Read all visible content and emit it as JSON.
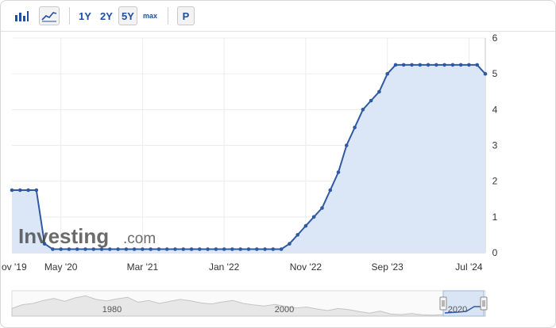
{
  "toolbar": {
    "bar_chart_icon": "bar-chart-icon",
    "area_chart_icon": "area-chart-icon",
    "range_1y": "1Y",
    "range_2y": "2Y",
    "range_5y": "5Y",
    "range_max": "max",
    "button_p": "P",
    "accent": "#1f4f9f"
  },
  "watermark": {
    "word": "Investing",
    "suffix": ".com"
  },
  "navigator": {
    "labels": [
      "1980",
      "2000",
      "2020"
    ]
  },
  "colors": {
    "line": "#2f5aa0",
    "area": "#dbe7f7",
    "marker": "#2f5aa0"
  },
  "chart_data": {
    "type": "area",
    "title": "",
    "xlabel": "",
    "ylabel": "",
    "ylim": [
      0,
      6
    ],
    "yticks": [
      0,
      1,
      2,
      3,
      4,
      5,
      6
    ],
    "grid": true,
    "legend": "none",
    "xtick_labels": [
      "ov '19",
      "May '20",
      "Mar '21",
      "Jan '22",
      "Nov '22",
      "Sep '23",
      "Jul '24"
    ],
    "dates": [
      "2019-11",
      "2019-12",
      "2020-01",
      "2020-02",
      "2020-03",
      "2020-04",
      "2020-05",
      "2020-06",
      "2020-07",
      "2020-08",
      "2020-09",
      "2020-10",
      "2020-11",
      "2020-12",
      "2021-01",
      "2021-02",
      "2021-03",
      "2021-04",
      "2021-05",
      "2021-06",
      "2021-07",
      "2021-08",
      "2021-09",
      "2021-10",
      "2021-11",
      "2021-12",
      "2022-01",
      "2022-02",
      "2022-03",
      "2022-04",
      "2022-05",
      "2022-06",
      "2022-07",
      "2022-08",
      "2022-09",
      "2022-10",
      "2022-11",
      "2022-12",
      "2023-01",
      "2023-02",
      "2023-03",
      "2023-04",
      "2023-05",
      "2023-06",
      "2023-07",
      "2023-08",
      "2023-09",
      "2023-10",
      "2023-11",
      "2023-12",
      "2024-01",
      "2024-02",
      "2024-03",
      "2024-04",
      "2024-05",
      "2024-06",
      "2024-07",
      "2024-08",
      "2024-09"
    ],
    "series": [
      {
        "values": [
          1.75,
          1.75,
          1.75,
          1.75,
          0.25,
          0.1,
          0.1,
          0.1,
          0.1,
          0.1,
          0.1,
          0.1,
          0.1,
          0.1,
          0.1,
          0.1,
          0.1,
          0.1,
          0.1,
          0.1,
          0.1,
          0.1,
          0.1,
          0.1,
          0.1,
          0.1,
          0.1,
          0.1,
          0.1,
          0.1,
          0.1,
          0.1,
          0.1,
          0.1,
          0.25,
          0.5,
          0.75,
          1.0,
          1.25,
          1.75,
          2.25,
          3.0,
          3.5,
          4.0,
          4.25,
          4.5,
          5.0,
          5.25,
          5.25,
          5.25,
          5.25,
          5.25,
          5.25,
          5.25,
          5.25,
          5.25,
          5.25,
          5.25,
          5.0
        ]
      }
    ]
  }
}
